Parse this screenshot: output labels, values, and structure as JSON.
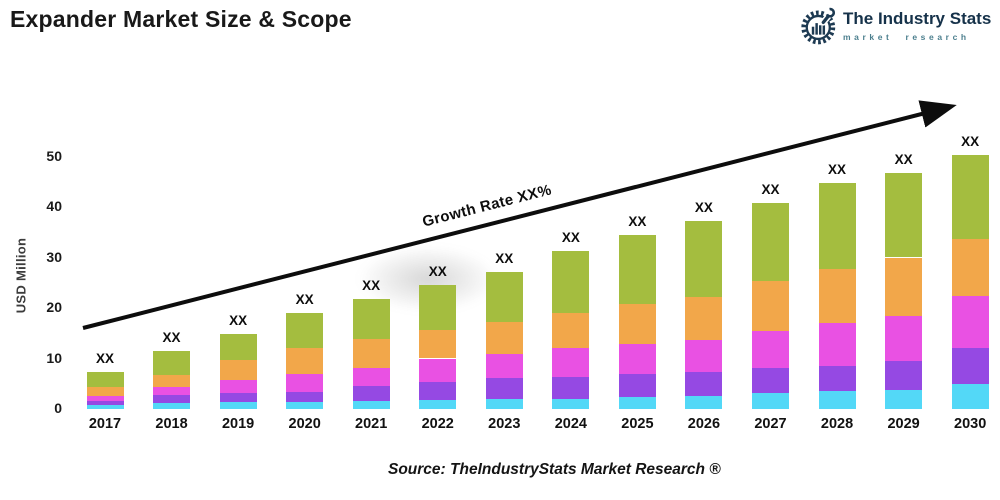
{
  "header": {
    "title": "Expander Market Size & Scope",
    "logo": {
      "title": "The Industry Stats",
      "subtitle": "market research",
      "brand_color": "#1d3a52",
      "subtitle_color": "#4c7f8e"
    }
  },
  "chart_data": {
    "type": "bar",
    "stacked": true,
    "title": "Expander Market Size & Scope",
    "xlabel": "",
    "ylabel": "USD Million",
    "ylim": [
      0,
      50
    ],
    "yticks": [
      0,
      10,
      20,
      30,
      40,
      50
    ],
    "grid": false,
    "legend": "none",
    "categories": [
      "2017",
      "2018",
      "2019",
      "2020",
      "2021",
      "2022",
      "2023",
      "2024",
      "2025",
      "2026",
      "2027",
      "2028",
      "2029",
      "2030"
    ],
    "series": [
      {
        "name": "segment-bottom-cyan",
        "color": "#53d8f7",
        "values": [
          0.7,
          1.2,
          1.4,
          1.4,
          1.6,
          1.8,
          2.0,
          1.9,
          2.4,
          2.6,
          3.1,
          3.5,
          3.7,
          4.9
        ]
      },
      {
        "name": "segment-purple",
        "color": "#9549e3",
        "values": [
          0.8,
          1.5,
          1.8,
          1.9,
          2.9,
          3.5,
          4.1,
          4.5,
          4.5,
          4.7,
          5.1,
          5.1,
          5.9,
          7.1
        ]
      },
      {
        "name": "segment-magenta",
        "color": "#e951e3",
        "values": [
          1.1,
          1.6,
          2.6,
          3.6,
          3.7,
          4.7,
          4.7,
          5.7,
          6.0,
          6.4,
          7.3,
          8.5,
          8.8,
          10.4
        ]
      },
      {
        "name": "segment-orange",
        "color": "#f2a74a",
        "values": [
          1.8,
          2.4,
          3.9,
          5.1,
          5.7,
          5.7,
          6.5,
          7.0,
          7.9,
          8.5,
          9.8,
          10.7,
          11.6,
          11.3
        ]
      },
      {
        "name": "segment-top-green",
        "color": "#a4bd3f",
        "values": [
          2.9,
          4.7,
          5.1,
          7.0,
          7.9,
          8.8,
          9.8,
          12.1,
          13.7,
          15.1,
          15.5,
          16.9,
          16.7,
          16.6
        ]
      }
    ],
    "totals_usd_million": [
      7.3,
      11.4,
      14.8,
      19.0,
      21.8,
      24.5,
      27.1,
      31.2,
      34.5,
      37.3,
      40.8,
      44.7,
      46.7,
      50.3
    ],
    "bar_value_label": "XX",
    "trend_label": "Growth Rate XX%"
  },
  "footer": {
    "source": "Source: TheIndustryStats Market Research ®"
  }
}
